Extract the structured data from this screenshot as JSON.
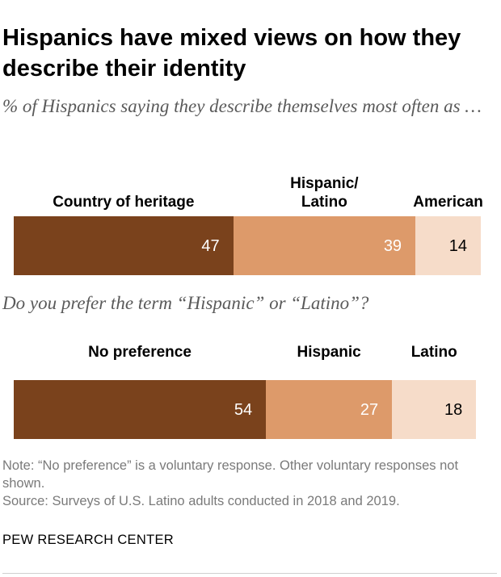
{
  "title": "Hispanics have mixed views on how they describe their identity",
  "subtitle": "% of Hispanics saying they describe themselves most often as …",
  "chart_data": [
    {
      "type": "bar",
      "orientation": "horizontal-stacked",
      "question": "",
      "categories": [
        "Country of heritage",
        "Hispanic/ Latino",
        "American"
      ],
      "values": [
        47,
        39,
        14
      ],
      "colors": [
        "#7a421c",
        "#dd9a6a",
        "#f6dcc9"
      ],
      "value_label_colors": [
        "#ffffff",
        "#ffffff",
        "#000000"
      ]
    },
    {
      "type": "bar",
      "orientation": "horizontal-stacked",
      "question": "Do you prefer the term “Hispanic” or “Latino”?",
      "categories": [
        "No preference",
        "Hispanic",
        "Latino"
      ],
      "values": [
        54,
        27,
        18
      ],
      "colors": [
        "#7a421c",
        "#dd9a6a",
        "#f6dcc9"
      ],
      "value_label_colors": [
        "#ffffff",
        "#ffffff",
        "#000000"
      ]
    }
  ],
  "notes": {
    "note": "Note: “No preference” is a voluntary response. Other voluntary responses not shown.",
    "source": "Source: Surveys of U.S. Latino adults conducted in 2018 and 2019."
  },
  "brand": "PEW RESEARCH CENTER"
}
